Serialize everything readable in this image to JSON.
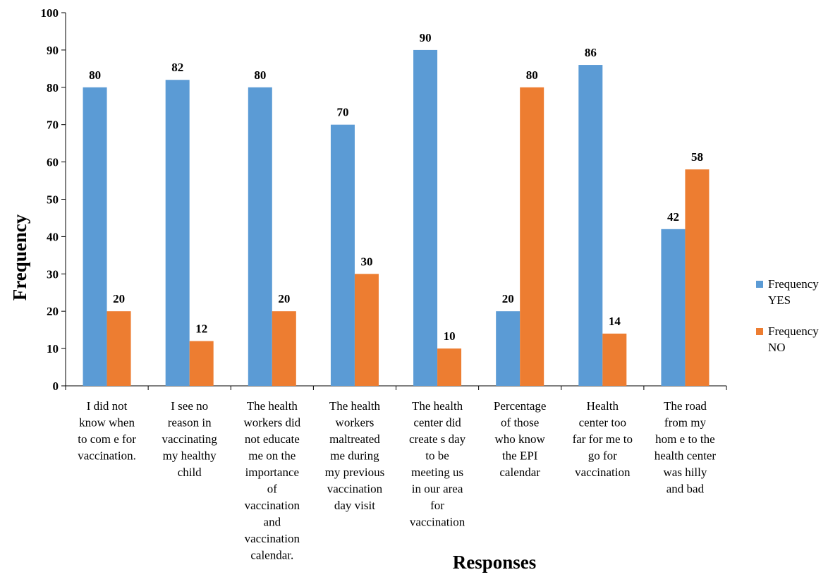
{
  "chart_data": {
    "type": "bar",
    "title": "",
    "xlabel": "Responses",
    "ylabel": "Frequency",
    "ylim": [
      0,
      100
    ],
    "ytick_step": 10,
    "grid": false,
    "legend_position": "right",
    "categories": [
      [
        "I did not",
        "know when",
        "to com e for",
        "vaccination."
      ],
      [
        "I see no",
        "reason in",
        "vaccinating",
        "my healthy",
        "child"
      ],
      [
        "The health",
        "workers did",
        "not educate",
        "me on the",
        "importance",
        "of",
        "vaccination",
        "and",
        "vaccination",
        "calendar."
      ],
      [
        "The health",
        "workers",
        "maltreated",
        "me during",
        "my previous",
        "vaccination",
        "day visit"
      ],
      [
        "The health",
        "center did",
        "create s day",
        "to be",
        "meeting us",
        "in our area",
        "for",
        "vaccination"
      ],
      [
        "Percentage",
        "of those",
        "who know",
        "the EPI",
        "calendar"
      ],
      [
        "Health",
        "center too",
        "far for me to",
        "go for",
        "vaccination"
      ],
      [
        "The road",
        "from my",
        "hom e to the",
        "health center",
        "was hilly",
        "and bad"
      ]
    ],
    "series": [
      {
        "name": [
          "Frequency",
          "YES"
        ],
        "color": "#5b9bd5",
        "values": [
          80,
          82,
          80,
          70,
          90,
          20,
          86,
          42
        ]
      },
      {
        "name": [
          "Frequency",
          "NO"
        ],
        "color": "#ed7d31",
        "values": [
          20,
          12,
          20,
          30,
          10,
          80,
          14,
          58
        ]
      }
    ]
  }
}
